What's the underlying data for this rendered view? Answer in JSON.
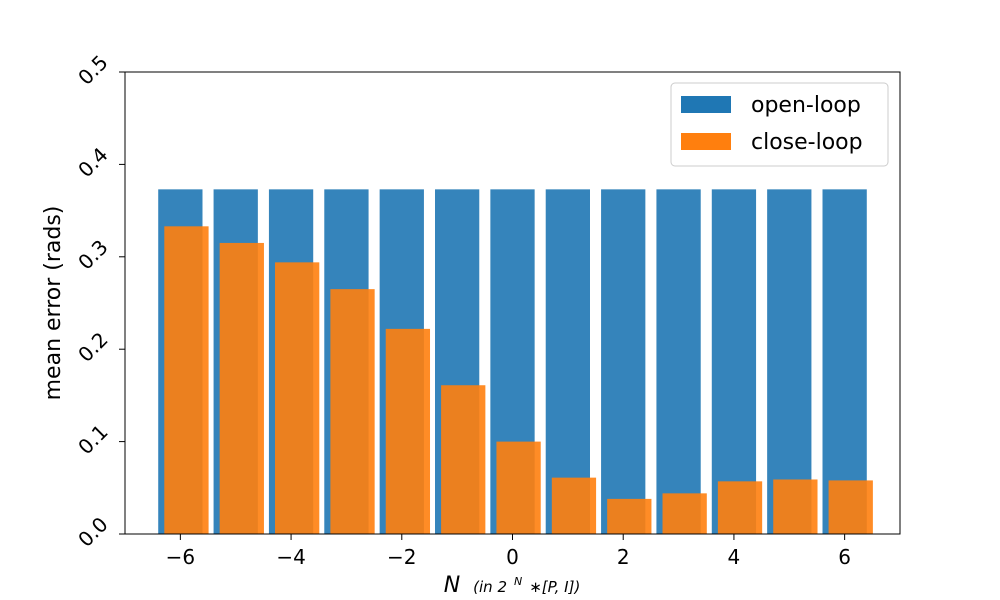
{
  "chart_data": {
    "type": "bar",
    "x": [
      -6,
      -5,
      -4,
      -3,
      -2,
      -1,
      0,
      1,
      2,
      3,
      4,
      5,
      6
    ],
    "series": [
      {
        "name": "open-loop",
        "color": "#1f77b4",
        "values": [
          0.373,
          0.373,
          0.373,
          0.373,
          0.373,
          0.373,
          0.373,
          0.373,
          0.373,
          0.373,
          0.373,
          0.373,
          0.373
        ]
      },
      {
        "name": "close-loop",
        "color": "#ff7f0e",
        "values": [
          0.333,
          0.315,
          0.294,
          0.265,
          0.222,
          0.161,
          0.1,
          0.061,
          0.038,
          0.044,
          0.057,
          0.059,
          0.058
        ]
      }
    ],
    "xlabel": "N",
    "xlabel_sub": "(in 2",
    "xlabel_sup": "N",
    "xlabel_rest": "∗[P, I])",
    "ylabel": "mean error (rads)",
    "xlim": [
      -7,
      7
    ],
    "ylim": [
      0,
      0.5
    ],
    "xticks": [
      -6,
      -4,
      -2,
      0,
      2,
      4,
      6
    ],
    "xtick_labels": [
      "−6",
      "−4",
      "−2",
      "0",
      "2",
      "4",
      "6"
    ],
    "yticks": [
      0.0,
      0.1,
      0.2,
      0.3,
      0.4,
      0.5
    ],
    "ytick_labels": [
      "0.0",
      "0.1",
      "0.2",
      "0.3",
      "0.4",
      "0.5"
    ],
    "legend_position": "top-right",
    "grid": false
  }
}
